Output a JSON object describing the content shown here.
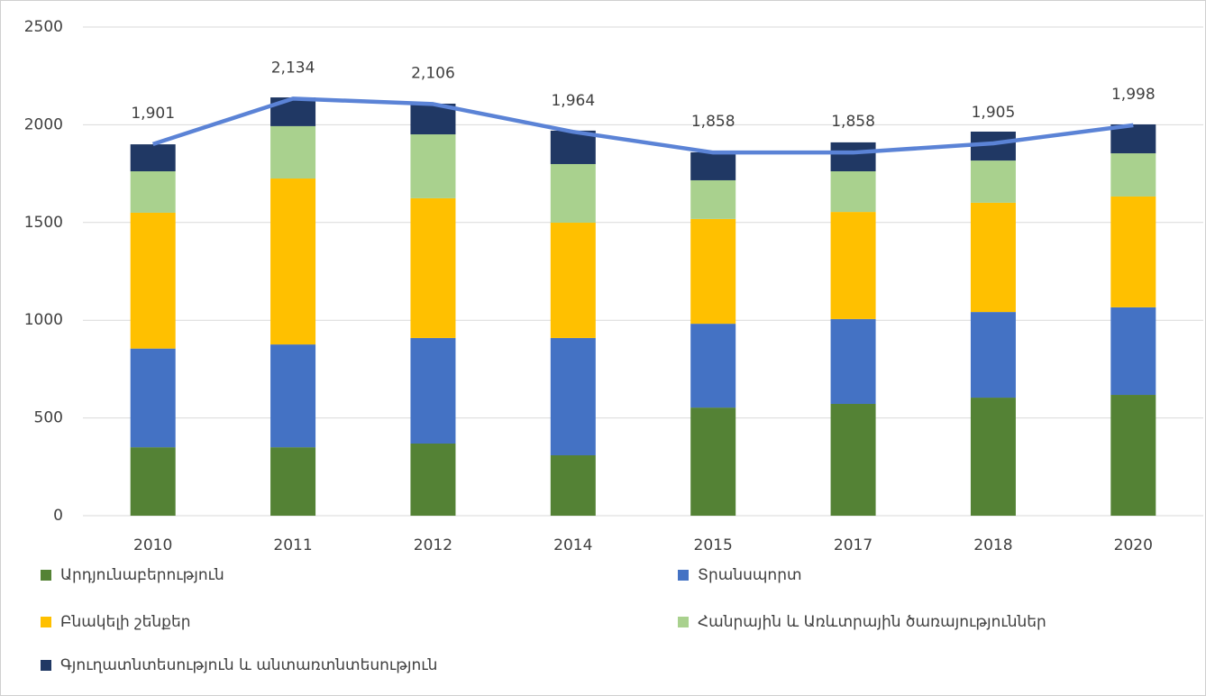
{
  "chart_data": {
    "type": "bar",
    "stacked": true,
    "categories": [
      "2010",
      "2011",
      "2012",
      "2014",
      "2015",
      "2017",
      "2018",
      "2020"
    ],
    "series": [
      {
        "name": "Արդյունաբերություն",
        "color": "#548235",
        "values": [
          350,
          350,
          369,
          309,
          553,
          572,
          604,
          618
        ]
      },
      {
        "name": "Տրանսպորտ",
        "color": "#4472c4",
        "values": [
          505,
          526,
          540,
          600,
          429,
          434,
          438,
          448
        ]
      },
      {
        "name": "Բնակելի շենքեր",
        "color": "#ffc000",
        "values": [
          695,
          849,
          715,
          590,
          536,
          548,
          559,
          567
        ]
      },
      {
        "name": "Հանրային և Առևտրային ծառայություններ",
        "color": "#a9d18e",
        "values": [
          212,
          268,
          327,
          300,
          198,
          208,
          216,
          221
        ]
      },
      {
        "name": "Գյուղատնտեսություն և անտառտնտեսություն",
        "color": "#203864",
        "values": [
          138,
          147,
          157,
          171,
          143,
          148,
          148,
          148
        ]
      }
    ],
    "line": {
      "color": "#5b83d6",
      "values": [
        1901,
        2134,
        2106,
        1964,
        1858,
        1858,
        1905,
        1998
      ],
      "value_labels": [
        "1,901",
        "2,134",
        "2,106",
        "1,964",
        "1,858",
        "1,858",
        "1,905",
        "1,998"
      ]
    },
    "ylim": [
      0,
      2500
    ],
    "yticks": [
      0,
      500,
      1000,
      1500,
      2000,
      2500
    ],
    "grid": true
  }
}
